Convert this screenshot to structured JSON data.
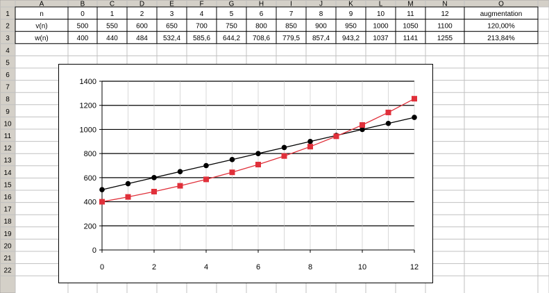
{
  "sheet": {
    "columns": [
      "A",
      "B",
      "C",
      "D",
      "E",
      "F",
      "G",
      "H",
      "I",
      "J",
      "K",
      "L",
      "M",
      "N",
      "O"
    ],
    "rows": [
      "1",
      "2",
      "3",
      "4",
      "5",
      "6",
      "7",
      "8",
      "9",
      "10",
      "11",
      "12",
      "13",
      "14",
      "15",
      "16",
      "17",
      "18",
      "19",
      "20",
      "21",
      "22"
    ],
    "row1": [
      "n",
      "0",
      "1",
      "2",
      "3",
      "4",
      "5",
      "6",
      "7",
      "8",
      "9",
      "10",
      "11",
      "12",
      "augmentation"
    ],
    "row2": [
      "v(n)",
      "500",
      "550",
      "600",
      "650",
      "700",
      "750",
      "800",
      "850",
      "900",
      "950",
      "1000",
      "1050",
      "1100",
      "120,00%"
    ],
    "row3": [
      "w(n)",
      "400",
      "440",
      "484",
      "532,4",
      "585,6",
      "644,2",
      "708,6",
      "779,5",
      "857,4",
      "943,2",
      "1037",
      "1141",
      "1255",
      "213,84%"
    ]
  },
  "colors": {
    "header_bg": "#d4d0c8",
    "grid": "#c0c0c0",
    "series_v": "#000000",
    "series_w": "#e0303a"
  },
  "chart_data": {
    "type": "scatter",
    "xlim": [
      0,
      12
    ],
    "ylim": [
      0,
      1400
    ],
    "xticks": [
      "0",
      "2",
      "4",
      "6",
      "8",
      "10",
      "12"
    ],
    "yticks": [
      "0",
      "200",
      "400",
      "600",
      "800",
      "1000",
      "1200",
      "1400"
    ],
    "grid": true,
    "legend": "none",
    "series": [
      {
        "x": [
          0,
          1,
          2,
          3,
          4,
          5,
          6,
          7,
          8,
          9,
          10,
          11,
          12
        ],
        "values": [
          500,
          550,
          600,
          650,
          700,
          750,
          800,
          850,
          900,
          950,
          1000,
          1050,
          1100
        ],
        "marker": "circle"
      },
      {
        "x": [
          0,
          1,
          2,
          3,
          4,
          5,
          6,
          7,
          8,
          9,
          10,
          11,
          12
        ],
        "values": [
          400,
          440,
          484,
          532.4,
          585.6,
          644.2,
          708.6,
          779.5,
          857.4,
          943.2,
          1037,
          1141,
          1255
        ],
        "marker": "square"
      }
    ]
  }
}
